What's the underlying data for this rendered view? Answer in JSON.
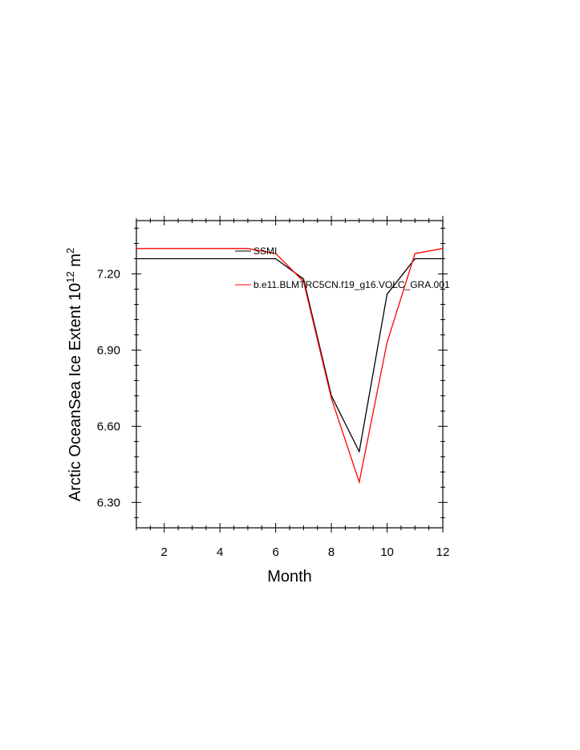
{
  "chart_data": {
    "type": "line",
    "xlabel": "Month",
    "ylabel": {
      "prefix": "Arctic OceanSea Ice Extent 10",
      "exponent1": "12",
      "unit": " m",
      "exponent2": "2"
    },
    "xlim": [
      1,
      12
    ],
    "ylim": [
      6.2,
      7.41
    ],
    "x_ticks": [
      2,
      4,
      6,
      8,
      10,
      12
    ],
    "y_ticks": [
      6.3,
      6.6,
      6.9,
      7.2
    ],
    "y_tick_labels": [
      "6.30",
      "6.60",
      "6.90",
      "7.20"
    ],
    "x": [
      1,
      2,
      3,
      4,
      5,
      6,
      7,
      8,
      9,
      10,
      11,
      12
    ],
    "series": [
      {
        "name": "SSMI",
        "color": "#000000",
        "values": [
          7.26,
          7.26,
          7.26,
          7.26,
          7.26,
          7.26,
          7.18,
          6.72,
          6.5,
          7.12,
          7.26,
          7.26
        ]
      },
      {
        "name": "b.e11.BLMTRC5CN.f19_g16.VOLC_GRA.001",
        "color": "#ff0000",
        "values": [
          7.3,
          7.3,
          7.3,
          7.3,
          7.3,
          7.28,
          7.17,
          6.71,
          6.38,
          6.93,
          7.28,
          7.3
        ]
      }
    ],
    "legend_position": "inside-top"
  }
}
